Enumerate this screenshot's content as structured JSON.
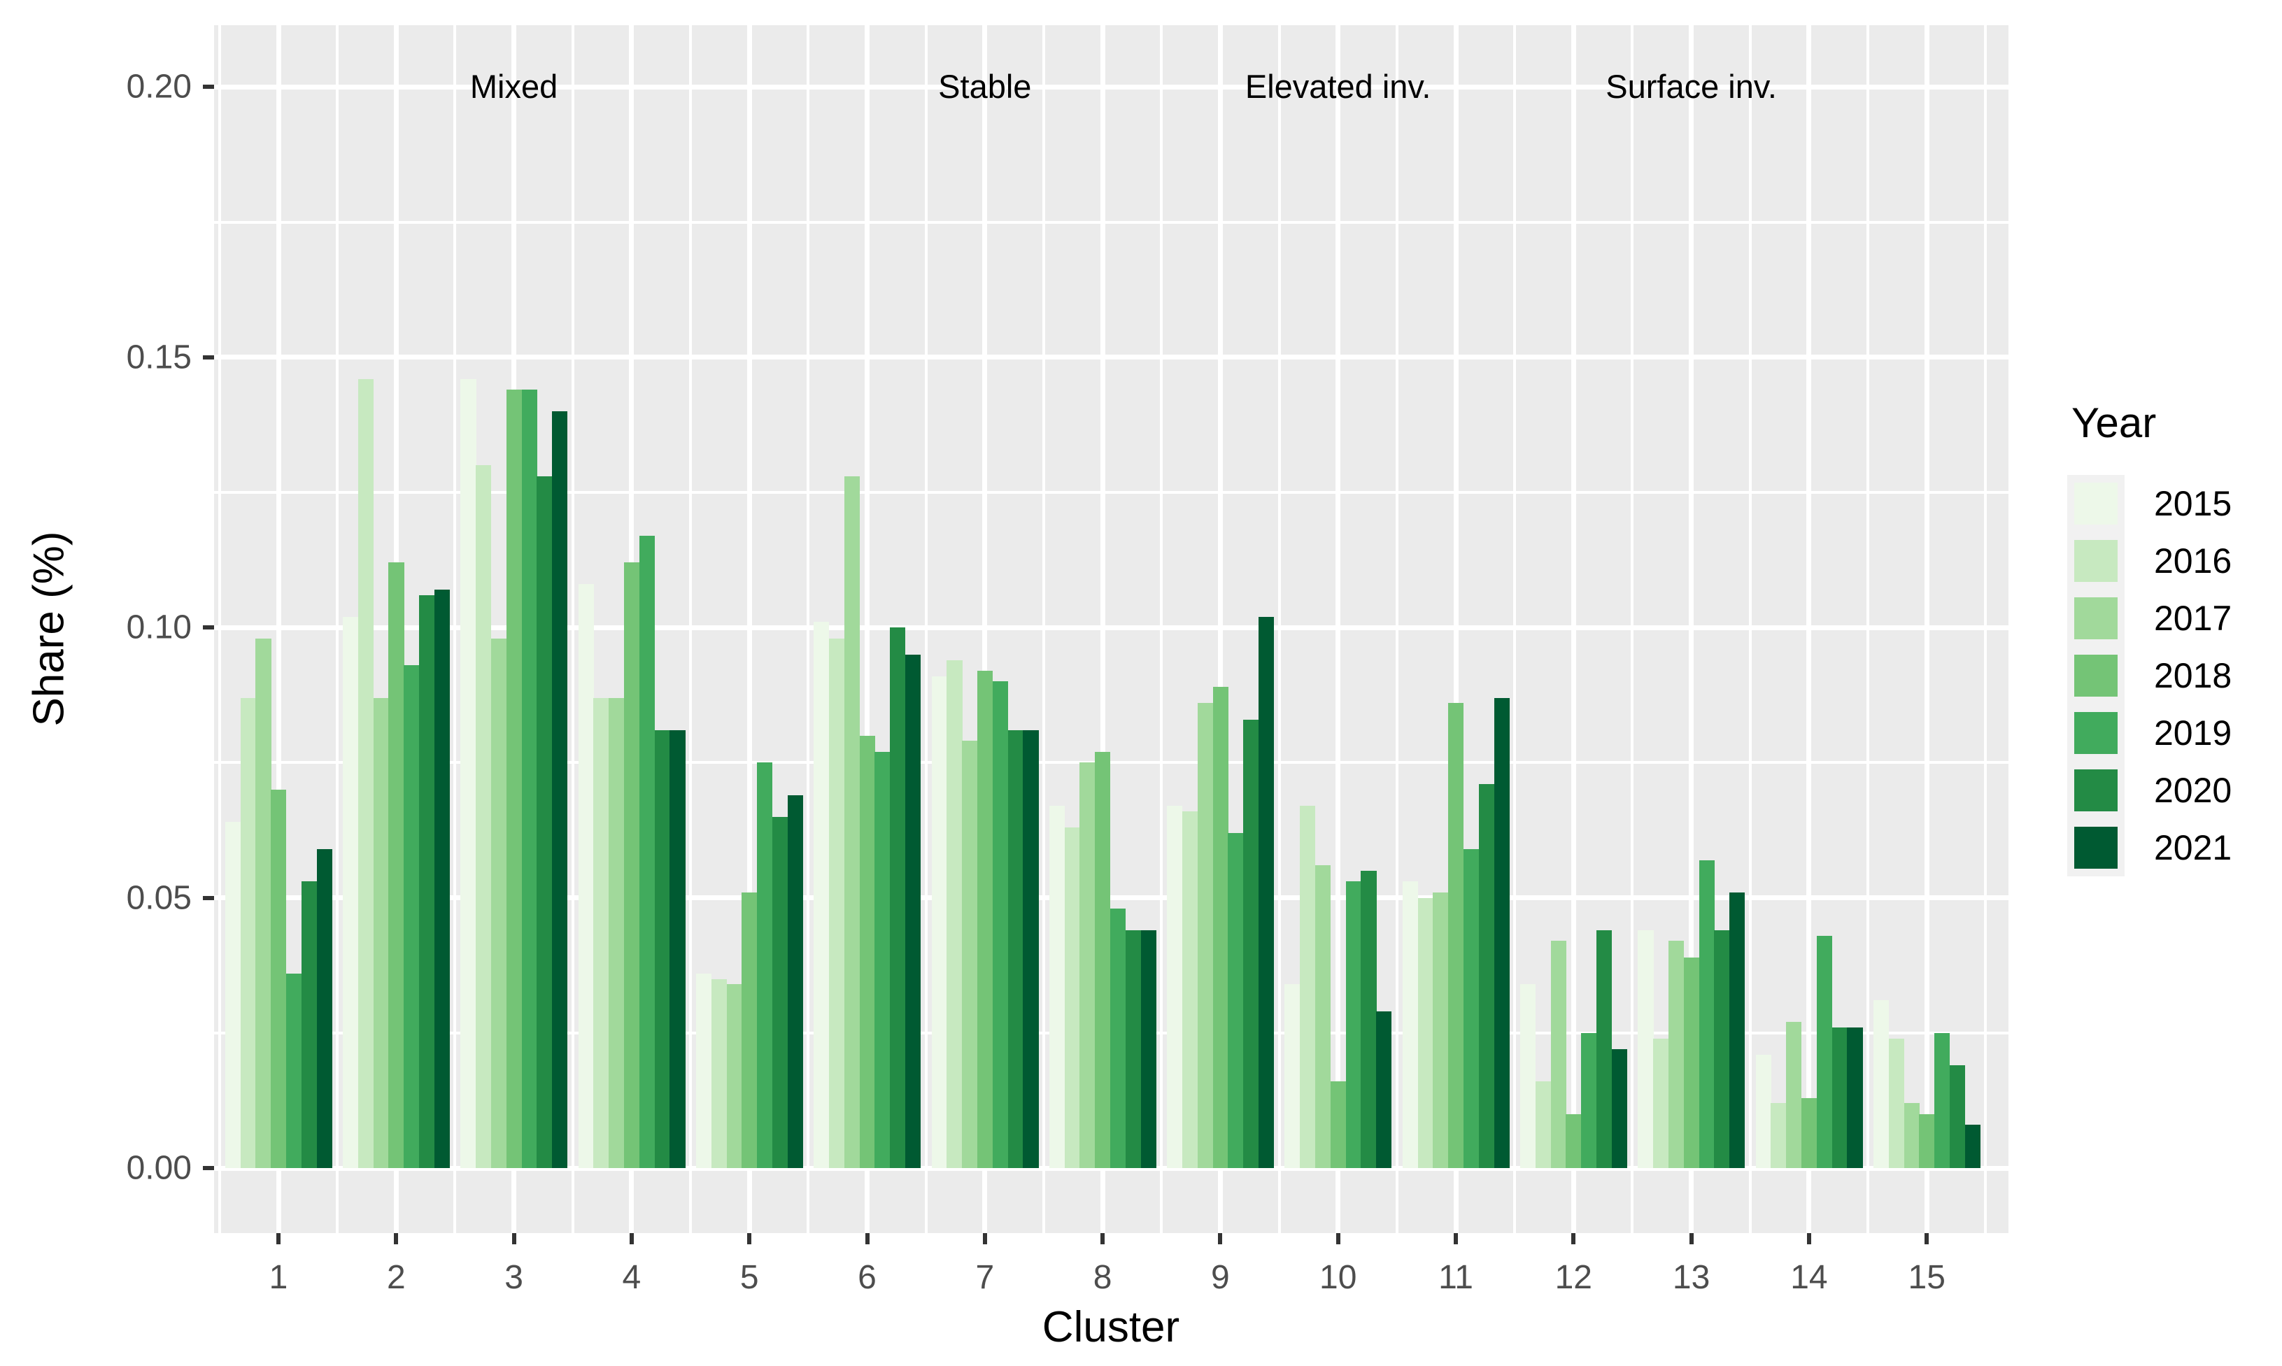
{
  "figure": {
    "background": "#FFFFFF",
    "panel_background": "#EBEBEB",
    "gridline_color": "#FFFFFF",
    "axis_text_color": "#4D4D4D",
    "axis_title_color": "#000000",
    "tick_mark_color": "#333333",
    "legend_key_background": "#F1F1F1"
  },
  "chart_data": {
    "type": "bar",
    "title": "",
    "xlabel": "Cluster",
    "ylabel": "Share (%)",
    "legend_title": "Year",
    "legend_position": "right",
    "grid": "on",
    "ylim": [
      0,
      0.2114
    ],
    "y_major_ticks": [
      {
        "value": 0.0,
        "label": "0.00"
      },
      {
        "value": 0.05,
        "label": "0.05"
      },
      {
        "value": 0.1,
        "label": "0.10"
      },
      {
        "value": 0.15,
        "label": "0.15"
      },
      {
        "value": 0.2,
        "label": "0.20"
      }
    ],
    "y_minor_ticks": [
      0.025,
      0.075,
      0.125,
      0.175
    ],
    "categories": [
      "1",
      "2",
      "3",
      "4",
      "5",
      "6",
      "7",
      "8",
      "9",
      "10",
      "11",
      "12",
      "13",
      "14",
      "15"
    ],
    "series": [
      {
        "name": "2015",
        "color": "#EDF8E9",
        "values": [
          0.064,
          0.102,
          0.146,
          0.108,
          0.036,
          0.101,
          0.091,
          0.067,
          0.067,
          0.034,
          0.053,
          0.034,
          0.044,
          0.021,
          0.031
        ]
      },
      {
        "name": "2016",
        "color": "#C7E9C0",
        "values": [
          0.087,
          0.146,
          0.13,
          0.087,
          0.035,
          0.098,
          0.094,
          0.063,
          0.066,
          0.067,
          0.05,
          0.016,
          0.024,
          0.012,
          0.024
        ]
      },
      {
        "name": "2017",
        "color": "#A1D99B",
        "values": [
          0.098,
          0.087,
          0.098,
          0.087,
          0.034,
          0.128,
          0.079,
          0.075,
          0.086,
          0.056,
          0.051,
          0.042,
          0.042,
          0.027,
          0.012
        ]
      },
      {
        "name": "2018",
        "color": "#74C476",
        "values": [
          0.07,
          0.112,
          0.144,
          0.112,
          0.051,
          0.08,
          0.092,
          0.077,
          0.089,
          0.016,
          0.086,
          0.01,
          0.039,
          0.013,
          0.01
        ]
      },
      {
        "name": "2019",
        "color": "#41AB5D",
        "values": [
          0.036,
          0.093,
          0.144,
          0.117,
          0.075,
          0.077,
          0.09,
          0.048,
          0.062,
          0.053,
          0.059,
          0.025,
          0.057,
          0.043,
          0.025
        ]
      },
      {
        "name": "2020",
        "color": "#238B45",
        "values": [
          0.053,
          0.106,
          0.128,
          0.081,
          0.065,
          0.1,
          0.081,
          0.044,
          0.083,
          0.055,
          0.071,
          0.044,
          0.044,
          0.026,
          0.019
        ]
      },
      {
        "name": "2021",
        "color": "#005A32",
        "values": [
          0.059,
          0.107,
          0.14,
          0.081,
          0.069,
          0.095,
          0.081,
          0.044,
          0.102,
          0.029,
          0.087,
          0.022,
          0.051,
          0.026,
          0.008
        ]
      }
    ],
    "annotations": [
      {
        "text": "Mixed",
        "cluster": 3,
        "y": 0.2
      },
      {
        "text": "Stable",
        "cluster": 7,
        "y": 0.2
      },
      {
        "text": "Elevated inv.",
        "cluster": 10,
        "y": 0.2
      },
      {
        "text": "Surface inv.",
        "cluster": 13,
        "y": 0.2
      }
    ]
  }
}
